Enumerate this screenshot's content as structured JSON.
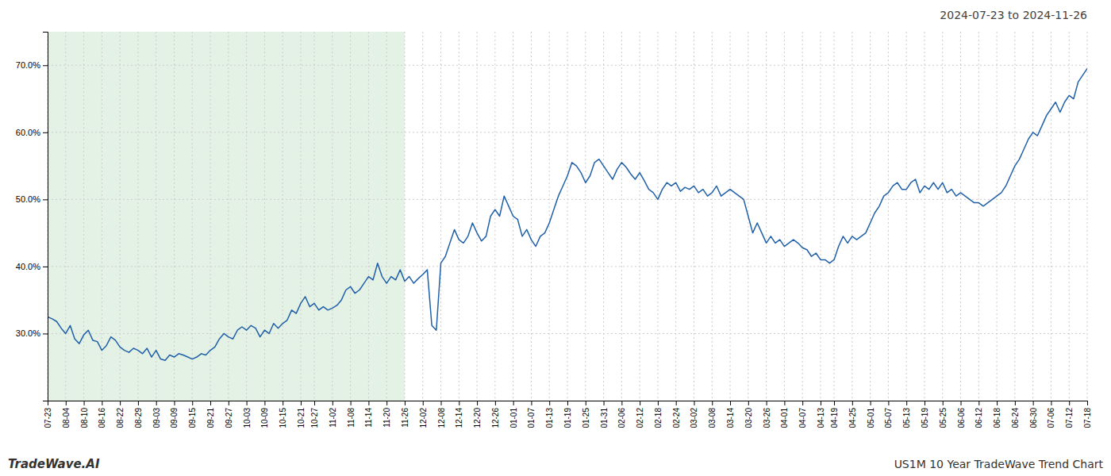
{
  "chart_data": {
    "type": "line",
    "title": "2024-07-23 to 2024-11-26",
    "annotations": [
      "TradeWave.AI",
      "US1M 10 Year TradeWave Trend Chart"
    ],
    "categories": [
      "07-23",
      null,
      null,
      null,
      "08-04",
      null,
      null,
      null,
      "08-10",
      null,
      null,
      null,
      "08-16",
      null,
      null,
      null,
      "08-22",
      null,
      null,
      null,
      "08-29",
      null,
      null,
      null,
      "09-03",
      null,
      null,
      null,
      "09-09",
      null,
      null,
      null,
      "09-15",
      null,
      null,
      null,
      "09-21",
      null,
      null,
      null,
      "09-27",
      null,
      null,
      null,
      "10-03",
      null,
      null,
      null,
      "10-09",
      null,
      null,
      null,
      "10-15",
      null,
      null,
      null,
      "10-21",
      null,
      null,
      "10-27",
      null,
      null,
      null,
      "11-02",
      null,
      null,
      null,
      "11-08",
      null,
      null,
      null,
      "11-14",
      null,
      null,
      null,
      "11-20",
      null,
      null,
      null,
      "11-26",
      null,
      null,
      null,
      "12-02",
      null,
      null,
      null,
      "12-08",
      null,
      null,
      null,
      "12-14",
      null,
      null,
      null,
      "12-20",
      null,
      null,
      null,
      "12-26",
      null,
      null,
      null,
      "01-01",
      null,
      null,
      null,
      "01-07",
      null,
      null,
      null,
      "01-13",
      null,
      null,
      null,
      "01-19",
      null,
      null,
      null,
      "01-25",
      null,
      null,
      null,
      "01-31",
      null,
      null,
      null,
      "02-06",
      null,
      null,
      null,
      "02-12",
      null,
      null,
      null,
      "02-18",
      null,
      null,
      null,
      "02-24",
      null,
      null,
      null,
      "03-02",
      null,
      null,
      null,
      "03-08",
      null,
      null,
      null,
      "03-14",
      null,
      null,
      null,
      "03-20",
      null,
      null,
      null,
      "03-26",
      null,
      null,
      null,
      "04-01",
      null,
      null,
      null,
      "04-07",
      null,
      null,
      null,
      "04-13",
      null,
      null,
      "04-19",
      null,
      null,
      null,
      "04-25",
      null,
      null,
      null,
      "05-01",
      null,
      null,
      null,
      "05-07",
      null,
      null,
      null,
      "05-13",
      null,
      null,
      null,
      "05-19",
      null,
      null,
      null,
      "05-25",
      null,
      null,
      null,
      "06-06",
      null,
      null,
      null,
      "06-12",
      null,
      null,
      null,
      "06-18",
      null,
      null,
      null,
      "06-24",
      null,
      null,
      null,
      "06-30",
      null,
      null,
      null,
      "07-06",
      null,
      null,
      null,
      "07-12",
      null,
      null,
      null,
      "07-18"
    ],
    "values": [
      32.5,
      32.2,
      31.8,
      30.8,
      30.0,
      31.2,
      29.2,
      28.5,
      29.8,
      30.5,
      29.0,
      28.8,
      27.5,
      28.2,
      29.5,
      29.0,
      28.0,
      27.5,
      27.2,
      27.8,
      27.5,
      27.0,
      27.8,
      26.5,
      27.5,
      26.2,
      26.0,
      26.8,
      26.5,
      27.0,
      26.8,
      26.5,
      26.2,
      26.5,
      27.0,
      26.8,
      27.5,
      28.0,
      29.2,
      30.0,
      29.5,
      29.2,
      30.5,
      31.0,
      30.5,
      31.2,
      30.8,
      29.5,
      30.5,
      30.0,
      31.5,
      30.8,
      31.5,
      32.0,
      33.5,
      33.0,
      34.5,
      35.5,
      34.0,
      34.5,
      33.5,
      34.0,
      33.5,
      33.8,
      34.2,
      35.0,
      36.5,
      37.0,
      36.0,
      36.5,
      37.5,
      38.5,
      38.0,
      40.5,
      38.5,
      37.5,
      38.5,
      38.0,
      39.5,
      37.8,
      38.5,
      37.5,
      38.2,
      38.8,
      39.5,
      31.2,
      30.5,
      40.5,
      41.5,
      43.5,
      45.5,
      44.0,
      43.5,
      44.5,
      46.5,
      45.0,
      43.8,
      44.5,
      47.5,
      48.5,
      47.5,
      50.5,
      49.0,
      47.5,
      47.0,
      44.5,
      45.5,
      44.0,
      43.0,
      44.5,
      45.0,
      46.5,
      48.5,
      50.5,
      52.0,
      53.5,
      55.5,
      55.0,
      54.0,
      52.5,
      53.5,
      55.5,
      56.0,
      55.0,
      54.0,
      53.0,
      54.5,
      55.5,
      54.8,
      53.8,
      53.0,
      54.0,
      52.8,
      51.5,
      51.0,
      50.0,
      51.5,
      52.5,
      52.0,
      52.5,
      51.2,
      51.8,
      51.5,
      52.0,
      51.0,
      51.5,
      50.5,
      51.0,
      52.0,
      50.5,
      51.0,
      51.5,
      51.0,
      50.5,
      50.0,
      47.5,
      45.0,
      46.5,
      45.0,
      43.5,
      44.5,
      43.5,
      44.0,
      43.0,
      43.5,
      44.0,
      43.5,
      42.8,
      42.5,
      41.5,
      42.0,
      41.0,
      41.0,
      40.5,
      41.0,
      43.0,
      44.5,
      43.5,
      44.5,
      44.0,
      44.5,
      45.0,
      46.5,
      48.0,
      49.0,
      50.5,
      51.0,
      52.0,
      52.5,
      51.5,
      51.5,
      52.5,
      53.0,
      51.0,
      52.0,
      51.5,
      52.5,
      51.5,
      52.5,
      51.0,
      51.5,
      50.5,
      51.0,
      50.5,
      50.0,
      49.5,
      49.5,
      49.0,
      49.5,
      50.0,
      50.5,
      51.0,
      52.0,
      53.5,
      55.0,
      56.0,
      57.5,
      59.0,
      60.0,
      59.5,
      61.0,
      62.5,
      63.5,
      64.5,
      63.0,
      64.5,
      65.5,
      65.0,
      67.5,
      68.5,
      69.5
    ],
    "color": "#2060a8",
    "ylim": [
      20,
      75
    ],
    "yticks": [
      {
        "value": 30,
        "label": "30.0%"
      },
      {
        "value": 40,
        "label": "40.0%"
      },
      {
        "value": 50,
        "label": "50.0%"
      },
      {
        "value": 60,
        "label": "60.0%"
      },
      {
        "value": 70,
        "label": "70.0%"
      }
    ],
    "grid": true,
    "shaded_region": {
      "from": "07-23",
      "to": "11-26",
      "color": "#cde8d0"
    }
  }
}
